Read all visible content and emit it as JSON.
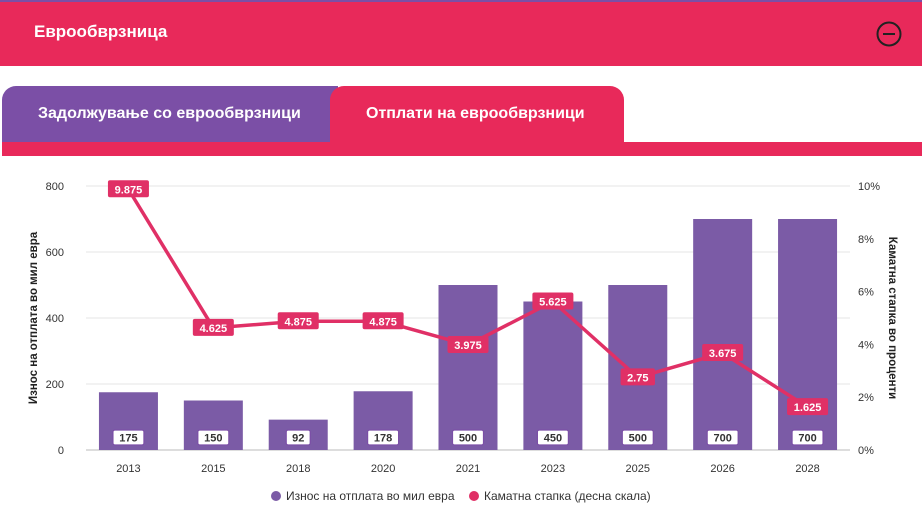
{
  "header": {
    "title": "Еврообврзница"
  },
  "tabs": [
    {
      "label": "Задолжување со еврообврзници"
    },
    {
      "label": "Отплати на еврообврзници"
    }
  ],
  "colors": {
    "bar": "#7b5ba6",
    "line": "#e03066",
    "accent": "#e8295a",
    "purple": "#7b4fa6"
  },
  "chart_data": {
    "type": "bar",
    "categories": [
      "2013",
      "2015",
      "2018",
      "2020",
      "2021",
      "2023",
      "2025",
      "2026",
      "2028"
    ],
    "series": [
      {
        "name": "Износ на отплата во мил евра",
        "type": "bar",
        "axis": "left",
        "values": [
          175,
          150,
          92,
          178,
          500,
          450,
          500,
          700,
          700
        ],
        "labels": [
          "175",
          "150",
          "92",
          "178",
          "500",
          "450",
          "500",
          "700",
          "700"
        ]
      },
      {
        "name": "Каматна стапка (десна скала)",
        "type": "line",
        "axis": "right",
        "values": [
          9.875,
          4.625,
          4.875,
          4.875,
          3.975,
          5.625,
          2.75,
          3.675,
          1.625
        ],
        "labels": [
          "9.875",
          "4.625",
          "4.875",
          "4.875",
          "3.975",
          "5.625",
          "2.75",
          "3.675",
          "1.625"
        ]
      }
    ],
    "ylabel": "Износ на отплата во мил евра",
    "y2label": "Каматна стапка во проценти",
    "ylim": [
      0,
      800
    ],
    "y2lim": [
      0,
      10
    ],
    "yticks": [
      "0",
      "200",
      "400",
      "600",
      "800"
    ],
    "y2ticks": [
      "0%",
      "2%",
      "4%",
      "6%",
      "8%",
      "10%"
    ],
    "legend": [
      "Износ на отплата во мил евра",
      "Каматна стапка (десна скала)"
    ]
  }
}
